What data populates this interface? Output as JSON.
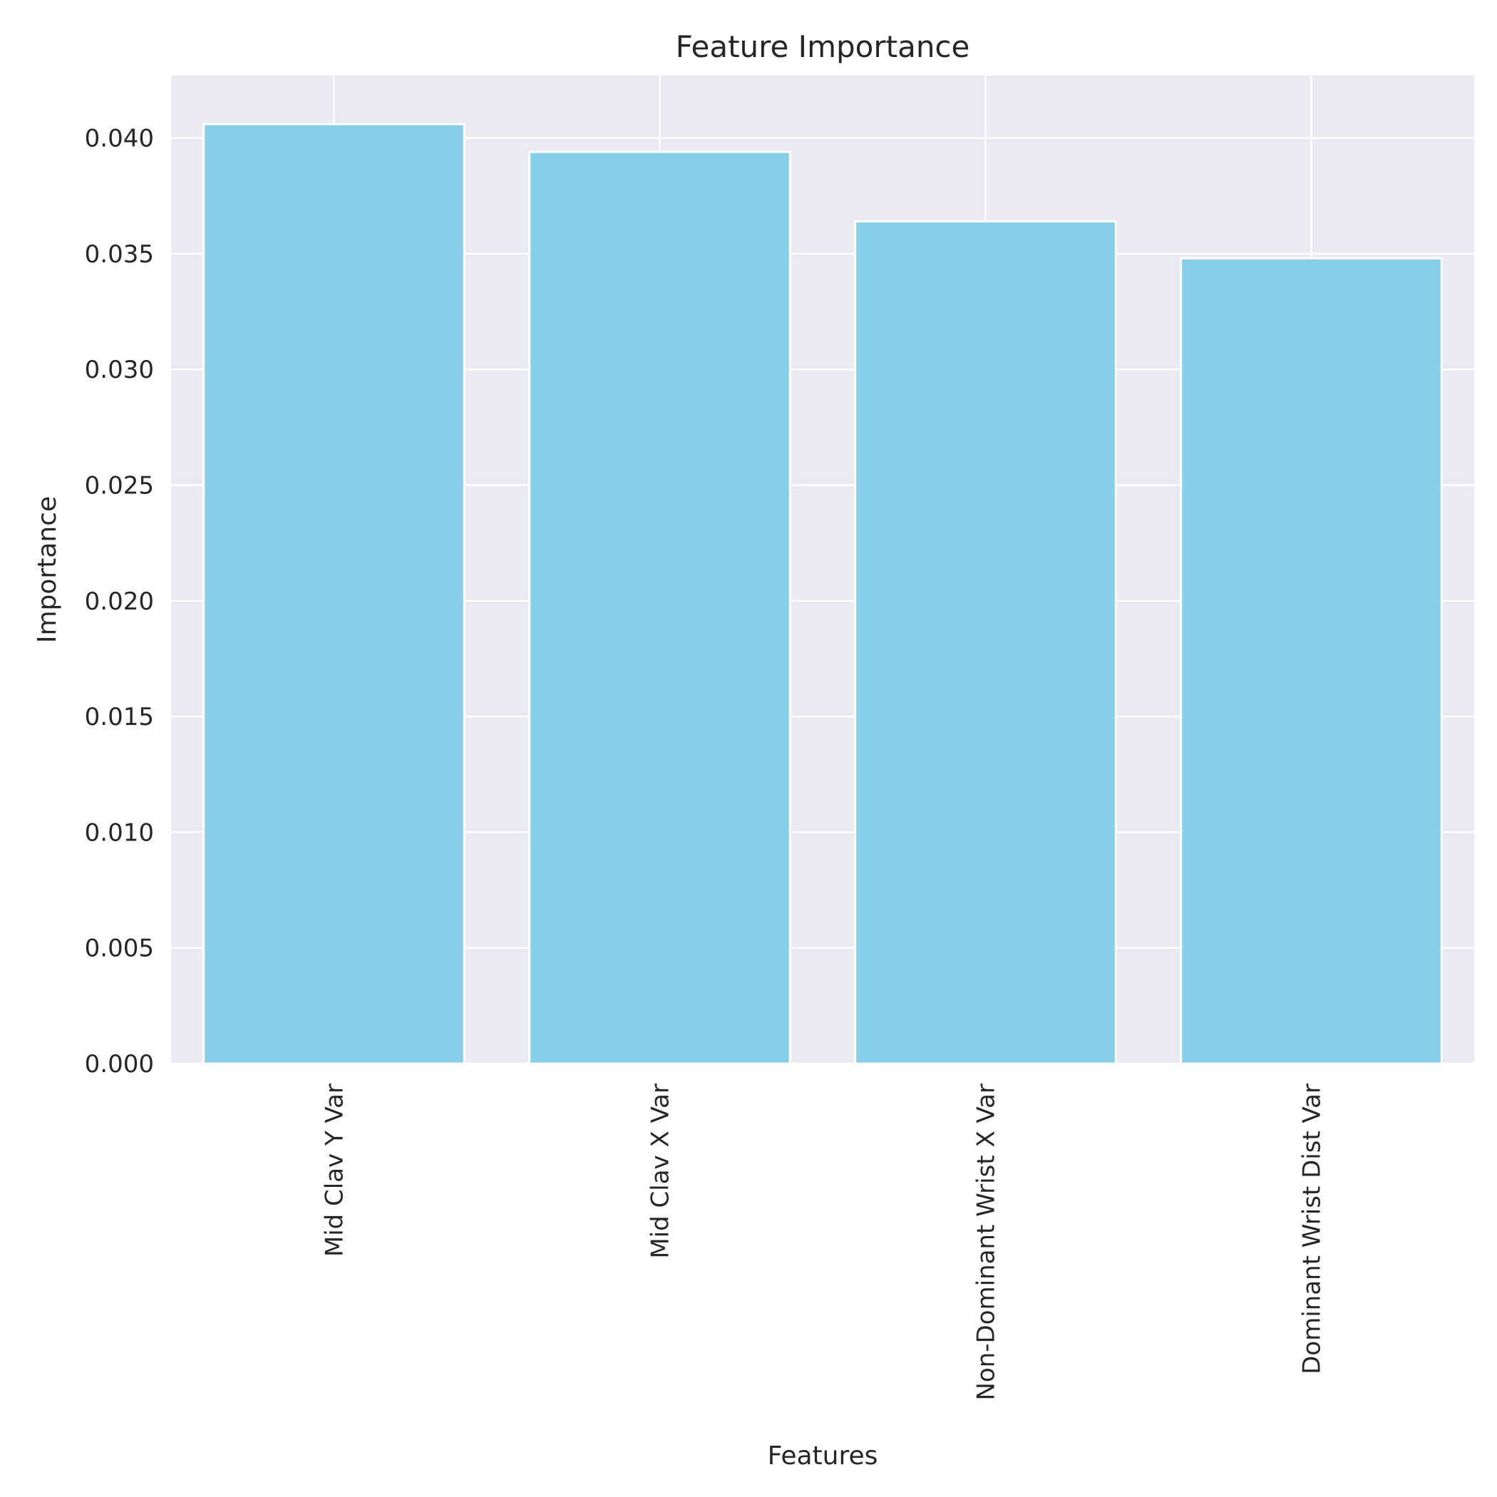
{
  "chart_data": {
    "type": "bar",
    "title": "Feature Importance",
    "xlabel": "Features",
    "ylabel": "Importance",
    "categories": [
      "Mid Clav Y Var",
      "Mid Clav X Var",
      "Non-Dominant Wrist X Var",
      "Dominant Wrist Dist Var"
    ],
    "values": [
      0.0406,
      0.0394,
      0.0364,
      0.0348
    ],
    "ylim": [
      0,
      0.0427
    ],
    "yticks": [
      0.0,
      0.005,
      0.01,
      0.015,
      0.02,
      0.025,
      0.03,
      0.035,
      0.04
    ],
    "ytick_labels": [
      "0.000",
      "0.005",
      "0.010",
      "0.015",
      "0.020",
      "0.025",
      "0.030",
      "0.035",
      "0.040"
    ],
    "grid": true,
    "colors": {
      "bar": "#87CEEB",
      "plot_background": "#EAEAF2",
      "grid": "#FFFFFF",
      "text": "#262626"
    }
  }
}
